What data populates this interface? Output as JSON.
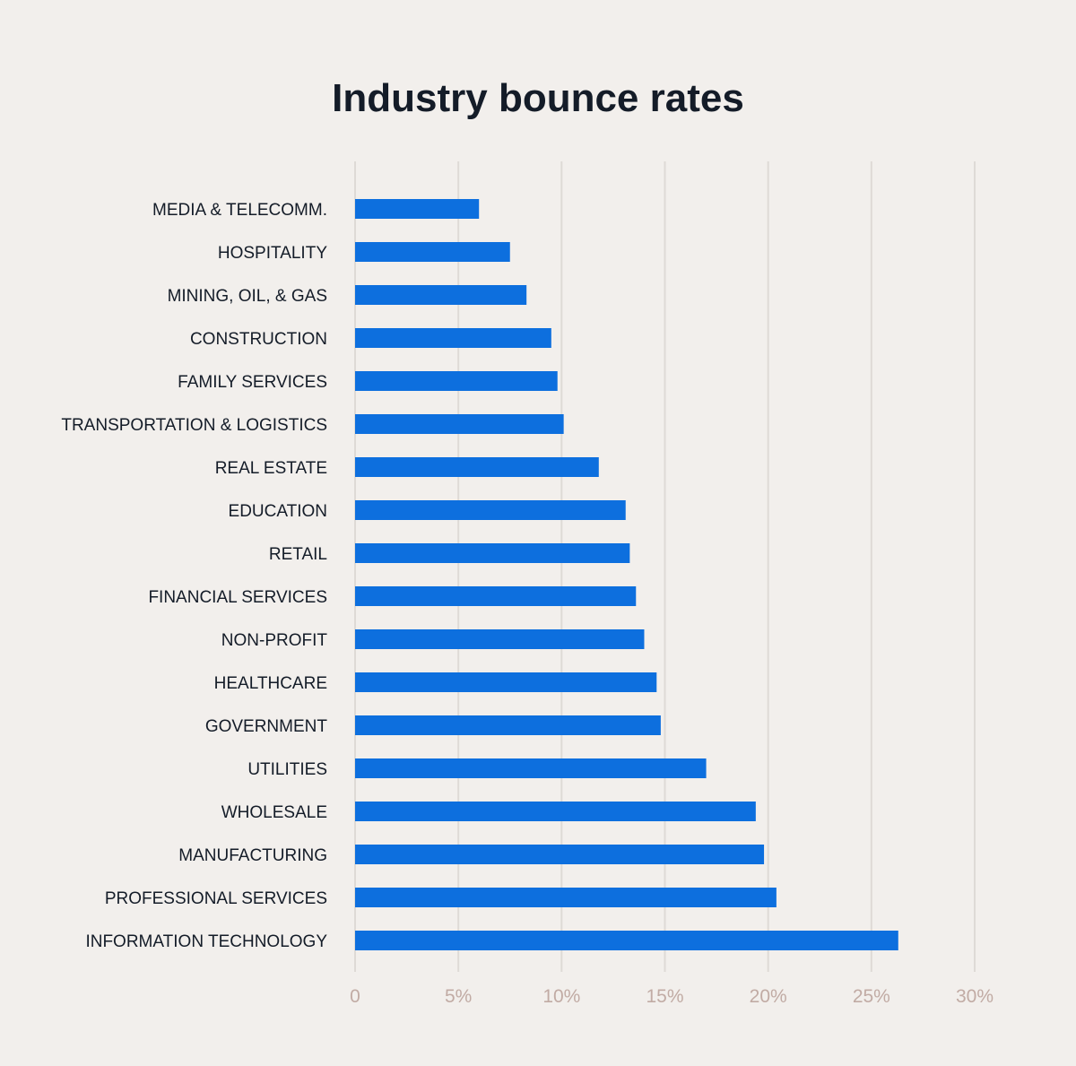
{
  "chart_data": {
    "type": "bar",
    "orientation": "horizontal",
    "title": "Industry bounce rates",
    "xlabel": "",
    "ylabel": "",
    "unit": "%",
    "xlim": [
      0,
      30
    ],
    "ticks": [
      0,
      5,
      10,
      15,
      20,
      25,
      30
    ],
    "tick_labels": [
      "0",
      "5%",
      "10%",
      "15%",
      "20%",
      "25%",
      "30%"
    ],
    "grid": true,
    "bar_color": "#0d6fde",
    "background_color": "#f2efec",
    "text_color": "#141c28",
    "tick_color": "#c1aba4",
    "grid_color": "#dedad6",
    "categories": [
      "MEDIA & TELECOMM.",
      "HOSPITALITY",
      "MINING, OIL, & GAS",
      "CONSTRUCTION",
      "FAMILY SERVICES",
      "TRANSPORTATION & LOGISTICS",
      "REAL ESTATE",
      "EDUCATION",
      "RETAIL",
      "FINANCIAL SERVICES",
      "NON-PROFIT",
      "HEALTHCARE",
      "GOVERNMENT",
      "UTILITIES",
      "WHOLESALE",
      "MANUFACTURING",
      "PROFESSIONAL SERVICES",
      "INFORMATION TECHNOLOGY"
    ],
    "values": [
      6.0,
      7.5,
      8.3,
      9.5,
      9.8,
      10.1,
      11.8,
      13.1,
      13.3,
      13.6,
      14.0,
      14.6,
      14.8,
      17.0,
      19.4,
      19.8,
      20.4,
      26.3
    ]
  }
}
